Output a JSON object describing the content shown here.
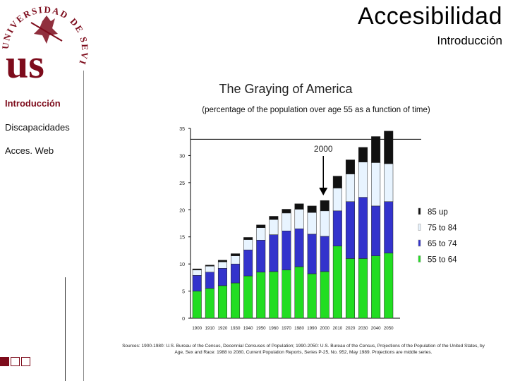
{
  "header": {
    "title": "Accesibilidad",
    "subtitle": "Introducción"
  },
  "logo": {
    "ring_text": "UNIVERSIDAD DE SEVILLA",
    "monogram": "us",
    "color": "#7d0b1b"
  },
  "sidebar": {
    "items": [
      {
        "label": "Introducción",
        "active": true
      },
      {
        "label": "Discapacidades",
        "active": false
      },
      {
        "label": "Acces. Web",
        "active": false
      }
    ]
  },
  "chart_data": {
    "type": "bar",
    "stacked": true,
    "title": "The Graying of America",
    "subtitle": "(percentage of the population over age 55 as a function of time)",
    "categories": [
      "1900",
      "1910",
      "1920",
      "1930",
      "1940",
      "1950",
      "1960",
      "1970",
      "1980",
      "1990",
      "2000",
      "2010",
      "2020",
      "2030",
      "2040",
      "2050"
    ],
    "ylim": [
      0,
      35
    ],
    "yticks": [
      "0",
      "5",
      "10",
      "15",
      "20",
      "25",
      "30",
      "35"
    ],
    "series": [
      {
        "name": "55 to 64",
        "color": "#22dd22",
        "values": [
          5.0,
          5.5,
          6.0,
          6.5,
          7.8,
          8.5,
          8.6,
          8.9,
          9.5,
          8.2,
          8.6,
          13.3,
          11.0,
          11.0,
          11.5,
          12.0
        ]
      },
      {
        "name": "65 to 74",
        "color": "#3333cc",
        "values": [
          2.9,
          3.0,
          3.2,
          3.5,
          4.8,
          5.9,
          6.8,
          7.2,
          7.0,
          7.3,
          6.5,
          6.5,
          10.5,
          11.3,
          9.2,
          9.5
        ]
      },
      {
        "name": "75 to 84",
        "color": "#e8f4ff",
        "values": [
          1.0,
          1.1,
          1.2,
          1.5,
          1.9,
          2.3,
          2.8,
          3.3,
          3.6,
          4.0,
          4.7,
          4.2,
          5.1,
          6.5,
          8.0,
          7.0
        ]
      },
      {
        "name": "85 up",
        "color": "#111111",
        "values": [
          0.2,
          0.2,
          0.3,
          0.4,
          0.4,
          0.5,
          0.6,
          0.7,
          1.0,
          1.2,
          1.9,
          2.2,
          2.6,
          2.7,
          4.8,
          6.0
        ]
      }
    ],
    "legend_order": [
      "85 up",
      "75 to 84",
      "65 to 74",
      "55 to 64"
    ],
    "reference_line": {
      "value": 33.0
    },
    "annotation": {
      "label": "2000",
      "category": "2000"
    },
    "sources": "Sources: 1900-1980: U.S. Bureau of the Census, Decennial Censuses of Population; 1990-2050: U.S. Bureau of the Census, Projections of the Population of the United States, by Age, Sex and Race: 1988 to 2080, Current Population Reports, Series P-25, No. 952, May 1989. Projections are middle series."
  }
}
